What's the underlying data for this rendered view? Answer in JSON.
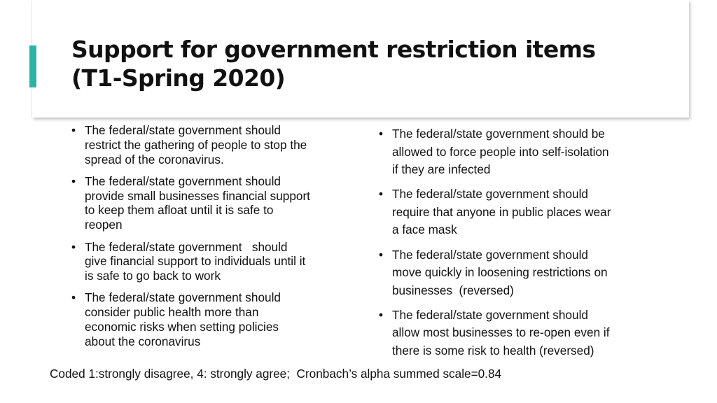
{
  "slide": {
    "title_lines": [
      "Support for government restriction items",
      "(T1-Spring 2020)"
    ],
    "accent_color": "#2ab3a6",
    "left_items": [
      [
        "The federal/state government should",
        "restrict the gathering of people to stop the",
        "spread of the coronavirus."
      ],
      [
        "The federal/state government should",
        "provide small businesses financial support",
        "to keep them afloat until it is safe to",
        "reopen"
      ],
      [
        "The federal/state government   should",
        "give financial support to individuals until it",
        "is safe to go back to work"
      ],
      [
        "The federal/state government should",
        "consider public health more than",
        "economic risks when setting policies",
        "about the coronavirus"
      ]
    ],
    "right_items": [
      [
        "The federal/state government should be",
        "allowed to force people into self-isolation",
        "if they are infected"
      ],
      [
        "The federal/state government should",
        "require that anyone in public places wear",
        "a face mask"
      ],
      [
        "The federal/state government should",
        "move quickly in loosening restrictions on",
        "businesses  (reversed)"
      ],
      [
        "The federal/state government should",
        "allow most businesses to re-open even if",
        "there is some risk to health (reversed)"
      ]
    ],
    "footnote": "Coded 1:strongly disagree, 4: strongly agree;  Cronbach’s alpha summed scale=0.84"
  }
}
